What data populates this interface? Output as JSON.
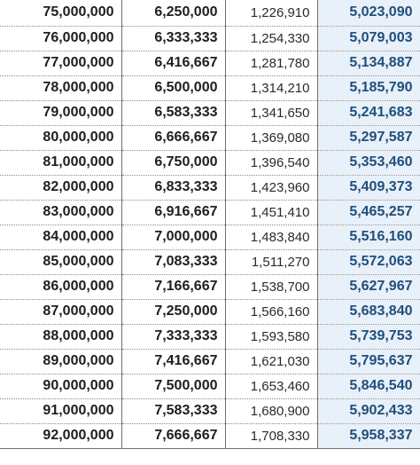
{
  "table": {
    "rows": [
      [
        "75,000,000",
        "6,250,000",
        "1,226,910",
        "5,023,090"
      ],
      [
        "76,000,000",
        "6,333,333",
        "1,254,330",
        "5,079,003"
      ],
      [
        "77,000,000",
        "6,416,667",
        "1,281,780",
        "5,134,887"
      ],
      [
        "78,000,000",
        "6,500,000",
        "1,314,210",
        "5,185,790"
      ],
      [
        "79,000,000",
        "6,583,333",
        "1,341,650",
        "5,241,683"
      ],
      [
        "80,000,000",
        "6,666,667",
        "1,369,080",
        "5,297,587"
      ],
      [
        "81,000,000",
        "6,750,000",
        "1,396,540",
        "5,353,460"
      ],
      [
        "82,000,000",
        "6,833,333",
        "1,423,960",
        "5,409,373"
      ],
      [
        "83,000,000",
        "6,916,667",
        "1,451,410",
        "5,465,257"
      ],
      [
        "84,000,000",
        "7,000,000",
        "1,483,840",
        "5,516,160"
      ],
      [
        "85,000,000",
        "7,083,333",
        "1,511,270",
        "5,572,063"
      ],
      [
        "86,000,000",
        "7,166,667",
        "1,538,700",
        "5,627,967"
      ],
      [
        "87,000,000",
        "7,250,000",
        "1,566,160",
        "5,683,840"
      ],
      [
        "88,000,000",
        "7,333,333",
        "1,593,580",
        "5,739,753"
      ],
      [
        "89,000,000",
        "7,416,667",
        "1,621,030",
        "5,795,637"
      ],
      [
        "90,000,000",
        "7,500,000",
        "1,653,460",
        "5,846,540"
      ],
      [
        "91,000,000",
        "7,583,333",
        "1,680,900",
        "5,902,433"
      ],
      [
        "92,000,000",
        "7,666,667",
        "1,708,330",
        "5,958,337"
      ]
    ]
  },
  "colors": {
    "net_text": "#1f4e79",
    "net_background": "#e8f0fa",
    "text": "#1e1e1e"
  }
}
